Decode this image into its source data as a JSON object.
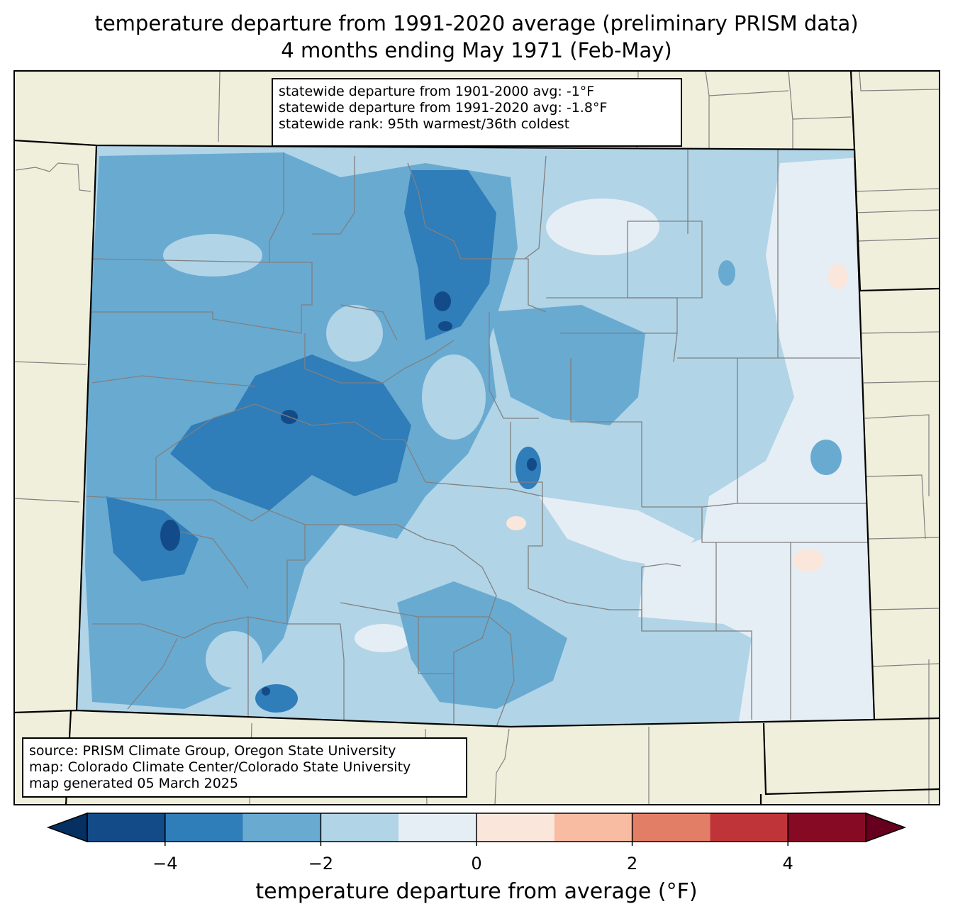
{
  "title": {
    "line1": "temperature departure from 1991-2020 average (preliminary PRISM data)",
    "line2": "4 months ending May 1971 (Feb-May)"
  },
  "stats": {
    "line1": "statewide departure from 1901-2000 avg: -1°F",
    "line2": "statewide departure from 1991-2020 avg: -1.8°F",
    "line3": "statewide rank: 95th warmest/36th coldest"
  },
  "source": {
    "line1": "source: PRISM Climate Group, Oregon State University",
    "line2": "map: Colorado Climate Center/Colorado State University",
    "line3": "map generated 05 March 2025"
  },
  "colorbar": {
    "label": "temperature departure from average (°F)",
    "ticks": [
      "−4",
      "−2",
      "0",
      "2",
      "4"
    ],
    "tick_values": [
      -4,
      -2,
      0,
      2,
      4
    ],
    "bins": [
      -5,
      -4,
      -3,
      -2,
      -1,
      0,
      1,
      2,
      3,
      4,
      5
    ],
    "colors": [
      "#134b88",
      "#2f7db9",
      "#69aad1",
      "#b1d4e7",
      "#e5eef4",
      "#fbe6db",
      "#f8bca2",
      "#e27e66",
      "#bf3438",
      "#870a25"
    ],
    "under_color": "#053061",
    "over_color": "#67001f"
  },
  "map_colors": {
    "land": "#efefdc",
    "state_border": "#000000",
    "county_border": "#808080"
  }
}
